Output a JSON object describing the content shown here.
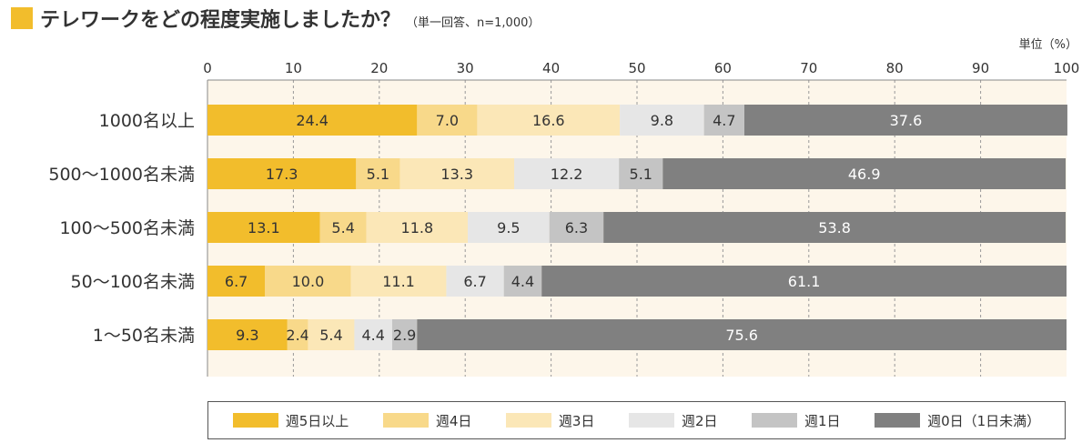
{
  "title": "テレワークをどの程度実施しましたか？",
  "subtitle": "（単一回答、n=1,000）",
  "unit": "単位（%）",
  "colors": {
    "title_square": "#f2bd2c",
    "plot_background": "#fdf6ea",
    "grid": "#999999"
  },
  "chart_data": {
    "type": "bar",
    "orientation": "horizontal",
    "stacked": true,
    "title": "テレワークをどの程度実施しましたか？",
    "subtitle": "（単一回答、n=1,000）",
    "unit_label": "単位（%）",
    "xlim": [
      0,
      100
    ],
    "xticks": [
      0,
      10,
      20,
      30,
      40,
      50,
      60,
      70,
      80,
      90,
      100
    ],
    "grid": true,
    "legend_position": "bottom",
    "categories": [
      "1000名以上",
      "500～1000名未満",
      "100～500名未満",
      "50～100名未満",
      "1～50名未満"
    ],
    "series": [
      {
        "name": "週5日以上",
        "color": "#f2bd2c",
        "label_color": "#333333",
        "values": [
          24.4,
          17.3,
          13.1,
          6.7,
          9.3
        ]
      },
      {
        "name": "週4日",
        "color": "#f8d98a",
        "label_color": "#333333",
        "values": [
          7.0,
          5.1,
          5.4,
          10.0,
          2.4
        ]
      },
      {
        "name": "週3日",
        "color": "#fbe7b7",
        "label_color": "#333333",
        "values": [
          16.6,
          13.3,
          11.8,
          11.1,
          5.4
        ]
      },
      {
        "name": "週2日",
        "color": "#e6e6e6",
        "label_color": "#333333",
        "values": [
          9.8,
          12.2,
          9.5,
          6.7,
          4.4
        ]
      },
      {
        "name": "週1日",
        "color": "#c4c4c4",
        "label_color": "#333333",
        "values": [
          4.7,
          5.1,
          6.3,
          4.4,
          2.9
        ]
      },
      {
        "name": "週0日（1日未満）",
        "color": "#808080",
        "label_color": "#ffffff",
        "values": [
          37.6,
          46.9,
          53.8,
          61.1,
          75.6
        ]
      }
    ]
  }
}
